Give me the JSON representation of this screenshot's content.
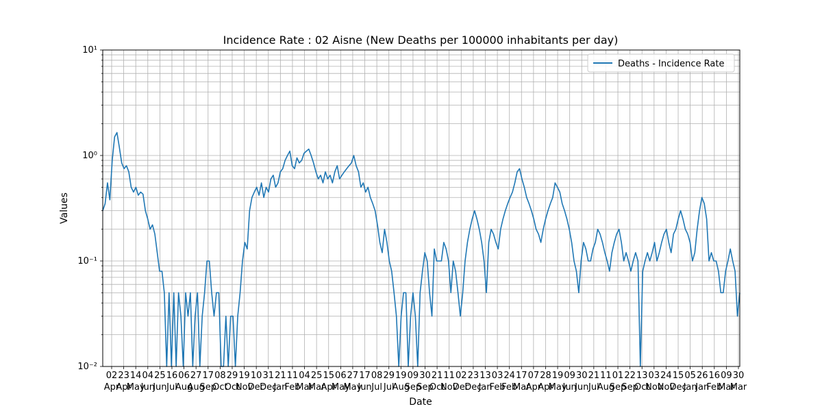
{
  "chart_data": {
    "type": "line",
    "title": "Incidence Rate : 02 Aisne (New Deaths per 100000 inhabitants per day)",
    "xlabel": "Date",
    "ylabel": "Values",
    "yscale": "log",
    "ylim": [
      0.01,
      10
    ],
    "y_tick_labels": [
      "10⁻²",
      "10⁻¹",
      "10⁰",
      "10¹"
    ],
    "grid": true,
    "legend_position": "top-right",
    "x_tick_labels": [
      {
        "day": "02",
        "month": "Apr"
      },
      {
        "day": "23",
        "month": "Apr"
      },
      {
        "day": "14",
        "month": "May"
      },
      {
        "day": "04",
        "month": "Jun"
      },
      {
        "day": "25",
        "month": "Jun"
      },
      {
        "day": "16",
        "month": "Jul"
      },
      {
        "day": "06",
        "month": "Aug"
      },
      {
        "day": "27",
        "month": "Aug"
      },
      {
        "day": "17",
        "month": "Sep"
      },
      {
        "day": "08",
        "month": "Oct"
      },
      {
        "day": "29",
        "month": "Oct"
      },
      {
        "day": "19",
        "month": "Nov"
      },
      {
        "day": "10",
        "month": "Dec"
      },
      {
        "day": "31",
        "month": "Dec"
      },
      {
        "day": "21",
        "month": "Jan"
      },
      {
        "day": "11",
        "month": "Feb"
      },
      {
        "day": "04",
        "month": "Mar"
      },
      {
        "day": "25",
        "month": "Mar"
      },
      {
        "day": "15",
        "month": "Apr"
      },
      {
        "day": "06",
        "month": "May"
      },
      {
        "day": "27",
        "month": "May"
      },
      {
        "day": "17",
        "month": "Jun"
      },
      {
        "day": "08",
        "month": "Jul"
      },
      {
        "day": "29",
        "month": "Jul"
      },
      {
        "day": "19",
        "month": "Aug"
      },
      {
        "day": "09",
        "month": "Sep"
      },
      {
        "day": "30",
        "month": "Sep"
      },
      {
        "day": "21",
        "month": "Oct"
      },
      {
        "day": "11",
        "month": "Nov"
      },
      {
        "day": "02",
        "month": "Dec"
      },
      {
        "day": "23",
        "month": "Dec"
      },
      {
        "day": "13",
        "month": "Jan"
      },
      {
        "day": "03",
        "month": "Feb"
      },
      {
        "day": "24",
        "month": "Feb"
      },
      {
        "day": "17",
        "month": "Mar"
      },
      {
        "day": "07",
        "month": "Apr"
      },
      {
        "day": "28",
        "month": "Apr"
      },
      {
        "day": "19",
        "month": "May"
      },
      {
        "day": "09",
        "month": "Jun"
      },
      {
        "day": "30",
        "month": "Jun"
      },
      {
        "day": "21",
        "month": "Jul"
      },
      {
        "day": "11",
        "month": "Aug"
      },
      {
        "day": "01",
        "month": "Sep"
      },
      {
        "day": "22",
        "month": "Sep"
      },
      {
        "day": "13",
        "month": "Oct"
      },
      {
        "day": "03",
        "month": "Nov"
      },
      {
        "day": "24",
        "month": "Nov"
      },
      {
        "day": "15",
        "month": "Dec"
      },
      {
        "day": "05",
        "month": "Jan"
      },
      {
        "day": "26",
        "month": "Jan"
      },
      {
        "day": "16",
        "month": "Feb"
      },
      {
        "day": "09",
        "month": "Mar"
      },
      {
        "day": "30",
        "month": "Mar"
      }
    ],
    "series": [
      {
        "name": "Deaths - Incidence Rate",
        "color": "#1f77b4",
        "values": [
          0.3,
          0.35,
          0.55,
          0.38,
          0.9,
          1.5,
          1.65,
          1.2,
          0.85,
          0.75,
          0.8,
          0.7,
          0.5,
          0.45,
          0.5,
          0.42,
          0.45,
          0.43,
          0.3,
          0.25,
          0.2,
          0.22,
          0.18,
          0.12,
          0.08,
          0.08,
          0.05,
          0.01,
          0.05,
          0.01,
          0.05,
          0.01,
          0.05,
          0.03,
          0.01,
          0.05,
          0.03,
          0.05,
          0.01,
          0.03,
          0.05,
          0.01,
          0.03,
          0.05,
          0.1,
          0.1,
          0.05,
          0.03,
          0.05,
          0.05,
          0.01,
          0.01,
          0.03,
          0.01,
          0.03,
          0.03,
          0.01,
          0.03,
          0.05,
          0.1,
          0.15,
          0.13,
          0.3,
          0.4,
          0.45,
          0.5,
          0.42,
          0.55,
          0.4,
          0.5,
          0.45,
          0.6,
          0.65,
          0.5,
          0.55,
          0.7,
          0.75,
          0.9,
          1.0,
          1.1,
          0.8,
          0.75,
          0.95,
          0.85,
          0.9,
          1.05,
          1.1,
          1.15,
          1.0,
          0.85,
          0.7,
          0.6,
          0.65,
          0.55,
          0.7,
          0.6,
          0.65,
          0.55,
          0.7,
          0.8,
          0.6,
          0.65,
          0.7,
          0.75,
          0.8,
          0.85,
          1.0,
          0.8,
          0.7,
          0.5,
          0.55,
          0.45,
          0.5,
          0.4,
          0.35,
          0.3,
          0.22,
          0.15,
          0.12,
          0.2,
          0.15,
          0.1,
          0.08,
          0.05,
          0.03,
          0.01,
          0.03,
          0.05,
          0.05,
          0.01,
          0.03,
          0.05,
          0.03,
          0.01,
          0.05,
          0.08,
          0.12,
          0.1,
          0.05,
          0.03,
          0.13,
          0.1,
          0.1,
          0.1,
          0.15,
          0.13,
          0.1,
          0.05,
          0.1,
          0.08,
          0.05,
          0.03,
          0.05,
          0.1,
          0.15,
          0.2,
          0.25,
          0.3,
          0.25,
          0.2,
          0.15,
          0.1,
          0.05,
          0.15,
          0.2,
          0.18,
          0.15,
          0.13,
          0.2,
          0.25,
          0.3,
          0.35,
          0.4,
          0.45,
          0.55,
          0.7,
          0.75,
          0.6,
          0.5,
          0.4,
          0.35,
          0.3,
          0.25,
          0.2,
          0.18,
          0.15,
          0.2,
          0.25,
          0.3,
          0.35,
          0.4,
          0.55,
          0.5,
          0.45,
          0.35,
          0.3,
          0.25,
          0.2,
          0.15,
          0.1,
          0.08,
          0.05,
          0.1,
          0.15,
          0.13,
          0.1,
          0.1,
          0.13,
          0.15,
          0.2,
          0.18,
          0.15,
          0.12,
          0.1,
          0.08,
          0.12,
          0.15,
          0.18,
          0.2,
          0.15,
          0.1,
          0.12,
          0.1,
          0.08,
          0.1,
          0.12,
          0.1,
          0.01,
          0.08,
          0.1,
          0.12,
          0.1,
          0.12,
          0.15,
          0.1,
          0.12,
          0.15,
          0.18,
          0.2,
          0.15,
          0.12,
          0.18,
          0.2,
          0.25,
          0.3,
          0.25,
          0.2,
          0.18,
          0.15,
          0.1,
          0.12,
          0.2,
          0.3,
          0.4,
          0.35,
          0.25,
          0.1,
          0.12,
          0.1,
          0.1,
          0.08,
          0.05,
          0.05,
          0.08,
          0.1,
          0.13,
          0.1,
          0.08,
          0.03,
          0.05
        ]
      }
    ]
  }
}
